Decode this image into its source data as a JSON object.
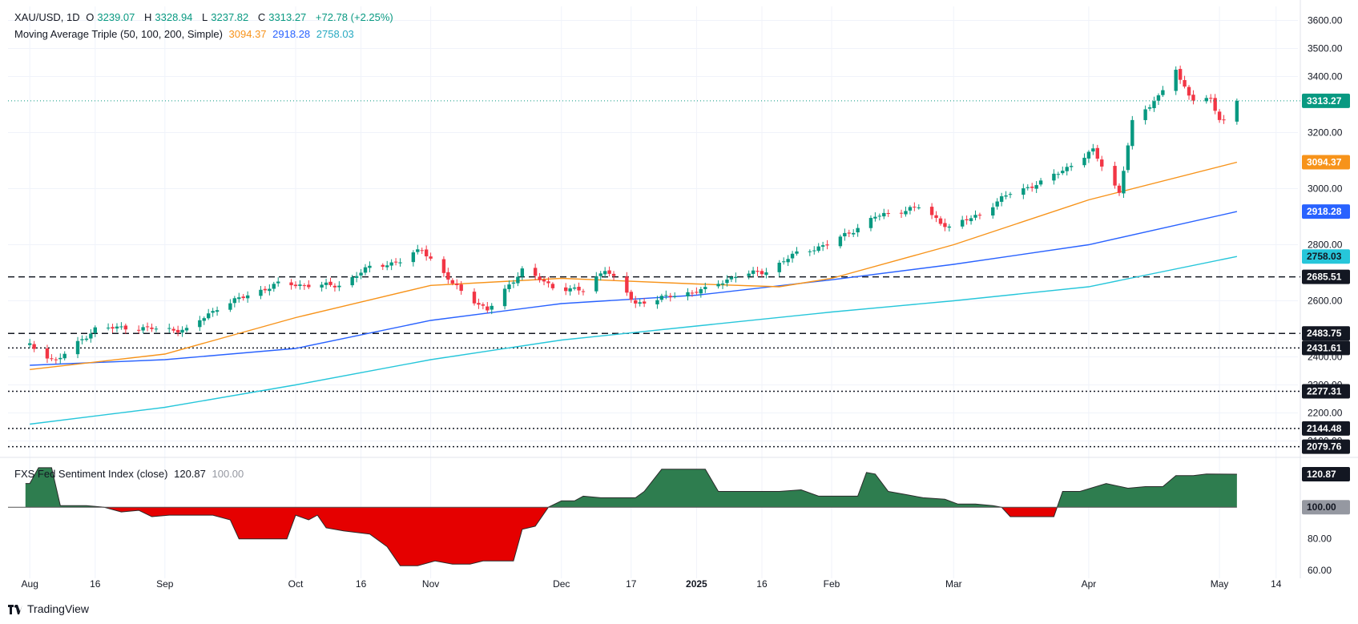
{
  "header": {
    "symbol": "XAU/USD, 1D",
    "open_label": "O",
    "open": "3239.07",
    "high_label": "H",
    "high": "3328.94",
    "low_label": "L",
    "low": "3237.82",
    "close_label": "C",
    "close": "3313.27",
    "change": "+72.78 (+2.25%)"
  },
  "ma_legend": {
    "name": "Moving Average Triple (50, 100, 200, Simple)",
    "ma50": "3094.37",
    "ma100": "2918.28",
    "ma200": "2758.03"
  },
  "indicator_legend": {
    "name": "FXS Fed Sentiment Index (close)",
    "value": "120.87",
    "baseline": "100.00"
  },
  "branding": {
    "text": "TradingView"
  },
  "colors": {
    "up": "#089981",
    "down": "#f23645",
    "ma50": "#f7931a",
    "ma100": "#2962ff",
    "ma200": "#26c6da",
    "area_pos": "#2e7d4f",
    "area_neg": "#e50000",
    "grid": "#f0f3fa"
  },
  "chart_data": [
    {
      "type": "candlestick",
      "title": "XAU/USD, 1D",
      "ylim": [
        2050,
        3650
      ],
      "y_ticks": [
        2100,
        2200,
        2300,
        2400,
        2600,
        2800,
        3000,
        3200,
        3400,
        3500,
        3600
      ],
      "x_tick_labels": [
        {
          "date": "2024-08-01",
          "label": "Aug"
        },
        {
          "date": "2024-08-16",
          "label": "16"
        },
        {
          "date": "2024-09-01",
          "label": "Sep"
        },
        {
          "date": "2024-10-01",
          "label": "Oct"
        },
        {
          "date": "2024-10-16",
          "label": "16"
        },
        {
          "date": "2024-11-01",
          "label": "Nov"
        },
        {
          "date": "2024-12-01",
          "label": "Dec"
        },
        {
          "date": "2024-12-17",
          "label": "17"
        },
        {
          "date": "2025-01-01",
          "label": "2025"
        },
        {
          "date": "2025-01-16",
          "label": "16"
        },
        {
          "date": "2025-02-01",
          "label": "Feb"
        },
        {
          "date": "2025-03-01",
          "label": "Mar"
        },
        {
          "date": "2025-04-01",
          "label": "Apr"
        },
        {
          "date": "2025-05-01",
          "label": "May"
        },
        {
          "date": "2025-05-14",
          "label": "14"
        }
      ],
      "price_levels": [
        {
          "value": 2685.51,
          "label": "2685.51",
          "style": "dashed"
        },
        {
          "value": 2483.75,
          "label": "2483.75",
          "style": "dashed"
        },
        {
          "value": 2431.61,
          "label": "2431.61",
          "style": "dotted"
        },
        {
          "value": 2277.31,
          "label": "2277.31",
          "style": "dotted"
        },
        {
          "value": 2144.48,
          "label": "2144.48",
          "style": "dotted"
        },
        {
          "value": 2079.76,
          "label": "2079.76",
          "style": "dotted"
        }
      ],
      "last_price": {
        "value": 3313.27,
        "label": "3313.27"
      },
      "ma_labels": [
        {
          "value": 3094.37,
          "label": "3094.37",
          "series": "ma50"
        },
        {
          "value": 2918.28,
          "label": "2918.28",
          "series": "ma100"
        },
        {
          "value": 2758.03,
          "label": "2758.03",
          "series": "ma200"
        }
      ],
      "close_path": [
        [
          "2024-08-01",
          2440
        ],
        [
          "2024-08-07",
          2385
        ],
        [
          "2024-08-16",
          2500
        ],
        [
          "2024-08-23",
          2505
        ],
        [
          "2024-09-06",
          2495
        ],
        [
          "2024-09-13",
          2575
        ],
        [
          "2024-09-20",
          2620
        ],
        [
          "2024-09-27",
          2660
        ],
        [
          "2024-10-04",
          2655
        ],
        [
          "2024-10-11",
          2655
        ],
        [
          "2024-10-18",
          2720
        ],
        [
          "2024-10-25",
          2740
        ],
        [
          "2024-10-30",
          2785
        ],
        [
          "2024-11-06",
          2660
        ],
        [
          "2024-11-14",
          2565
        ],
        [
          "2024-11-22",
          2710
        ],
        [
          "2024-11-29",
          2650
        ],
        [
          "2024-12-06",
          2635
        ],
        [
          "2024-12-11",
          2715
        ],
        [
          "2024-12-18",
          2590
        ],
        [
          "2024-12-27",
          2620
        ],
        [
          "2025-01-03",
          2640
        ],
        [
          "2025-01-10",
          2690
        ],
        [
          "2025-01-17",
          2705
        ],
        [
          "2025-01-24",
          2770
        ],
        [
          "2025-01-31",
          2800
        ],
        [
          "2025-02-07",
          2860
        ],
        [
          "2025-02-11",
          2900
        ],
        [
          "2025-02-21",
          2935
        ],
        [
          "2025-02-28",
          2860
        ],
        [
          "2025-03-07",
          2910
        ],
        [
          "2025-03-14",
          2985
        ],
        [
          "2025-03-21",
          3020
        ],
        [
          "2025-03-28",
          3085
        ],
        [
          "2025-04-02",
          3135
        ],
        [
          "2025-04-08",
          2985
        ],
        [
          "2025-04-11",
          3235
        ],
        [
          "2025-04-17",
          3330
        ],
        [
          "2025-04-21",
          3425
        ],
        [
          "2025-04-22",
          3380
        ],
        [
          "2025-04-25",
          3320
        ],
        [
          "2025-04-29",
          3320
        ],
        [
          "2025-05-01",
          3240
        ],
        [
          "2025-05-02",
          3240
        ],
        [
          "2025-05-05",
          3313.27
        ]
      ],
      "ma50_path": [
        [
          "2024-08-01",
          2355
        ],
        [
          "2024-09-01",
          2410
        ],
        [
          "2024-10-01",
          2540
        ],
        [
          "2024-11-01",
          2655
        ],
        [
          "2024-12-01",
          2680
        ],
        [
          "2025-01-01",
          2660
        ],
        [
          "2025-01-20",
          2650
        ],
        [
          "2025-02-01",
          2680
        ],
        [
          "2025-03-01",
          2800
        ],
        [
          "2025-04-01",
          2960
        ],
        [
          "2025-05-05",
          3094.37
        ]
      ],
      "ma100_path": [
        [
          "2024-08-01",
          2370
        ],
        [
          "2024-09-01",
          2390
        ],
        [
          "2024-10-01",
          2430
        ],
        [
          "2024-11-01",
          2530
        ],
        [
          "2024-12-01",
          2590
        ],
        [
          "2025-01-01",
          2620
        ],
        [
          "2025-02-01",
          2675
        ],
        [
          "2025-03-01",
          2730
        ],
        [
          "2025-04-01",
          2800
        ],
        [
          "2025-05-05",
          2918.28
        ]
      ],
      "ma200_path": [
        [
          "2024-08-01",
          2160
        ],
        [
          "2024-09-01",
          2220
        ],
        [
          "2024-10-01",
          2300
        ],
        [
          "2024-11-01",
          2390
        ],
        [
          "2024-12-01",
          2460
        ],
        [
          "2025-01-01",
          2510
        ],
        [
          "2025-02-01",
          2560
        ],
        [
          "2025-03-01",
          2600
        ],
        [
          "2025-04-01",
          2650
        ],
        [
          "2025-05-05",
          2758.03
        ]
      ]
    },
    {
      "type": "area",
      "title": "FXS Fed Sentiment Index (close)",
      "ylim": [
        55,
        130
      ],
      "y_ticks": [
        60,
        80
      ],
      "baseline": 100,
      "last_value": {
        "value": 120.87,
        "label": "120.87"
      },
      "baseline_label": "100.00",
      "points": [
        [
          "2024-07-31",
          115
        ],
        [
          "2024-08-01",
          115
        ],
        [
          "2024-08-03",
          125
        ],
        [
          "2024-08-06",
          125
        ],
        [
          "2024-08-08",
          101
        ],
        [
          "2024-08-14",
          101
        ],
        [
          "2024-08-18",
          100
        ],
        [
          "2024-08-22",
          97
        ],
        [
          "2024-08-26",
          98
        ],
        [
          "2024-08-29",
          94
        ],
        [
          "2024-09-02",
          95
        ],
        [
          "2024-09-06",
          95
        ],
        [
          "2024-09-12",
          95
        ],
        [
          "2024-09-16",
          92
        ],
        [
          "2024-09-18",
          80
        ],
        [
          "2024-09-24",
          80
        ],
        [
          "2024-09-29",
          80
        ],
        [
          "2024-10-01",
          95
        ],
        [
          "2024-10-04",
          92
        ],
        [
          "2024-10-06",
          95
        ],
        [
          "2024-10-08",
          87
        ],
        [
          "2024-10-12",
          85
        ],
        [
          "2024-10-18",
          83
        ],
        [
          "2024-10-22",
          75
        ],
        [
          "2024-10-25",
          63
        ],
        [
          "2024-10-29",
          63
        ],
        [
          "2024-11-02",
          66
        ],
        [
          "2024-11-06",
          64
        ],
        [
          "2024-11-10",
          64
        ],
        [
          "2024-11-13",
          66
        ],
        [
          "2024-11-20",
          66
        ],
        [
          "2024-11-22",
          86
        ],
        [
          "2024-11-25",
          88
        ],
        [
          "2024-11-28",
          100
        ],
        [
          "2024-12-01",
          104
        ],
        [
          "2024-12-04",
          104
        ],
        [
          "2024-12-06",
          107
        ],
        [
          "2024-12-10",
          106
        ],
        [
          "2024-12-14",
          106
        ],
        [
          "2024-12-18",
          106
        ],
        [
          "2024-12-20",
          110
        ],
        [
          "2024-12-24",
          124
        ],
        [
          "2024-12-31",
          124
        ],
        [
          "2025-01-03",
          124
        ],
        [
          "2025-01-06",
          110
        ],
        [
          "2025-01-10",
          110
        ],
        [
          "2025-01-16",
          110
        ],
        [
          "2025-01-20",
          110
        ],
        [
          "2025-01-25",
          111
        ],
        [
          "2025-01-29",
          107
        ],
        [
          "2025-02-03",
          107
        ],
        [
          "2025-02-07",
          107
        ],
        [
          "2025-02-09",
          122
        ],
        [
          "2025-02-11",
          121
        ],
        [
          "2025-02-14",
          110
        ],
        [
          "2025-02-18",
          108
        ],
        [
          "2025-02-22",
          106
        ],
        [
          "2025-02-27",
          105
        ],
        [
          "2025-03-02",
          102
        ],
        [
          "2025-03-06",
          102
        ],
        [
          "2025-03-10",
          101
        ],
        [
          "2025-03-12",
          100
        ],
        [
          "2025-03-14",
          94
        ],
        [
          "2025-03-24",
          94
        ],
        [
          "2025-03-26",
          110
        ],
        [
          "2025-03-30",
          110
        ],
        [
          "2025-04-05",
          115
        ],
        [
          "2025-04-10",
          112
        ],
        [
          "2025-04-14",
          113
        ],
        [
          "2025-04-18",
          113
        ],
        [
          "2025-04-21",
          120
        ],
        [
          "2025-04-25",
          120
        ],
        [
          "2025-04-28",
          121
        ],
        [
          "2025-05-05",
          120.87
        ]
      ]
    }
  ]
}
